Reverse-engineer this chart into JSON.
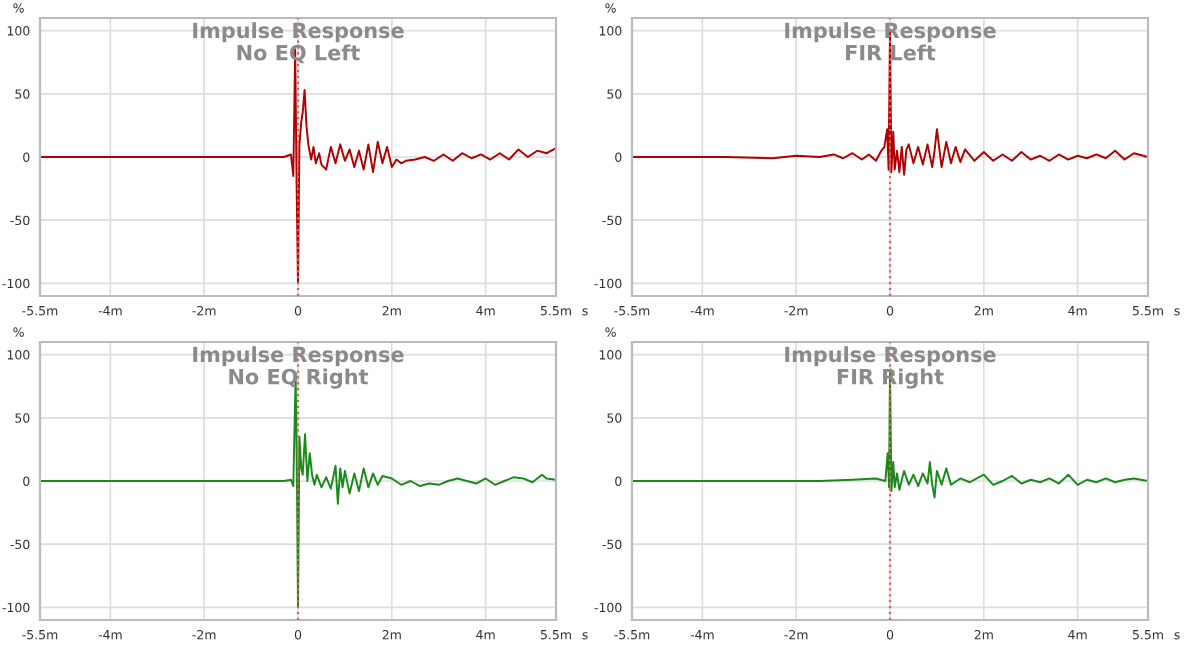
{
  "chart_data": [
    {
      "type": "line",
      "title": "Impulse Response",
      "subtitle": "No EQ Left",
      "ylabel": "%",
      "xlabel": "s",
      "xlim": [
        -5.5,
        5.5
      ],
      "xticks": [
        {
          "value": -5.5,
          "label": "-5.5m"
        },
        {
          "value": -4,
          "label": "-4m"
        },
        {
          "value": -2,
          "label": "-2m"
        },
        0,
        {
          "value": 2,
          "label": "2m"
        },
        {
          "value": 4,
          "label": "4m"
        },
        {
          "value": 5.5,
          "label": "5.5m"
        }
      ],
      "ylim": [
        -110,
        110
      ],
      "yticks": [
        -100,
        -50,
        0,
        50,
        100
      ],
      "grid": true,
      "ref_lines": [
        {
          "axis": "x",
          "value": 0,
          "color": "#e06060",
          "line_style": "dotted"
        }
      ],
      "series": [
        {
          "color": "#b00000",
          "x": [
            -5.5,
            -0.3,
            -0.15,
            -0.1,
            -0.06,
            -0.03,
            0,
            0.03,
            0.07,
            0.1,
            0.14,
            0.18,
            0.22,
            0.28,
            0.33,
            0.38,
            0.45,
            0.5,
            0.6,
            0.7,
            0.8,
            0.9,
            1.0,
            1.1,
            1.2,
            1.3,
            1.4,
            1.5,
            1.6,
            1.7,
            1.8,
            1.9,
            2.0,
            2.1,
            2.2,
            2.3,
            2.5,
            2.7,
            2.9,
            3.1,
            3.3,
            3.5,
            3.7,
            3.9,
            4.1,
            4.3,
            4.5,
            4.7,
            4.9,
            5.1,
            5.3,
            5.5
          ],
          "values": [
            0,
            0,
            2,
            -15,
            85,
            -20,
            -100,
            10,
            28,
            35,
            53,
            25,
            10,
            -2,
            8,
            -5,
            3,
            -6,
            -10,
            8,
            -5,
            10,
            -3,
            6,
            -8,
            5,
            -10,
            10,
            -12,
            12,
            -5,
            8,
            -8,
            -2,
            -5,
            -3,
            -2,
            0,
            -3,
            2,
            -3,
            3,
            -1,
            2,
            -2,
            3,
            -2,
            6,
            0,
            5,
            3,
            7
          ]
        }
      ]
    },
    {
      "type": "line",
      "title": "Impulse Response",
      "subtitle": "FIR Left",
      "ylabel": "%",
      "xlabel": "s",
      "xlim": [
        -5.5,
        5.5
      ],
      "xticks": [
        {
          "value": -5.5,
          "label": "-5.5m"
        },
        {
          "value": -4,
          "label": "-4m"
        },
        {
          "value": -2,
          "label": "-2m"
        },
        0,
        {
          "value": 2,
          "label": "2m"
        },
        {
          "value": 4,
          "label": "4m"
        },
        {
          "value": 5.5,
          "label": "5.5m"
        }
      ],
      "ylim": [
        -110,
        110
      ],
      "yticks": [
        -100,
        -50,
        0,
        50,
        100
      ],
      "grid": true,
      "ref_lines": [
        {
          "axis": "x",
          "value": 0,
          "color": "#e06060",
          "line_style": "dotted"
        }
      ],
      "series": [
        {
          "color": "#b00000",
          "x": [
            -5.5,
            -3.5,
            -2.5,
            -2,
            -1.5,
            -1.2,
            -1.0,
            -0.8,
            -0.6,
            -0.45,
            -0.3,
            -0.2,
            -0.12,
            -0.06,
            -0.03,
            0,
            0.03,
            0.07,
            0.1,
            0.15,
            0.2,
            0.25,
            0.3,
            0.35,
            0.4,
            0.5,
            0.6,
            0.7,
            0.8,
            0.9,
            0.95,
            1.0,
            1.1,
            1.2,
            1.3,
            1.4,
            1.5,
            1.6,
            1.8,
            2.0,
            2.2,
            2.4,
            2.6,
            2.8,
            3.0,
            3.2,
            3.4,
            3.6,
            3.8,
            4.0,
            4.2,
            4.4,
            4.6,
            4.8,
            5.0,
            5.2,
            5.5
          ],
          "values": [
            0,
            0,
            -1,
            1,
            0,
            2,
            -1,
            3,
            -2,
            2,
            -3,
            4,
            8,
            22,
            -10,
            100,
            -12,
            20,
            -10,
            5,
            -12,
            8,
            -14,
            6,
            10,
            -5,
            8,
            -6,
            10,
            -8,
            5,
            22,
            -8,
            12,
            -5,
            8,
            -4,
            6,
            -3,
            4,
            -3,
            2,
            -3,
            4,
            -2,
            1,
            -3,
            2,
            -2,
            1,
            -1,
            2,
            -1,
            5,
            -2,
            3,
            0
          ]
        }
      ]
    },
    {
      "type": "line",
      "title": "Impulse Response",
      "subtitle": "No EQ Right",
      "ylabel": "%",
      "xlabel": "s",
      "xlim": [
        -5.5,
        5.5
      ],
      "xticks": [
        {
          "value": -5.5,
          "label": "-5.5m"
        },
        {
          "value": -4,
          "label": "-4m"
        },
        {
          "value": -2,
          "label": "-2m"
        },
        0,
        {
          "value": 2,
          "label": "2m"
        },
        {
          "value": 4,
          "label": "4m"
        },
        {
          "value": 5.5,
          "label": "5.5m"
        }
      ],
      "ylim": [
        -110,
        110
      ],
      "yticks": [
        -100,
        -50,
        0,
        50,
        100
      ],
      "grid": true,
      "ref_lines": [
        {
          "axis": "x",
          "value": 0,
          "color": "#e06060",
          "line_style": "dotted"
        }
      ],
      "series": [
        {
          "color": "#1a8a1a",
          "x": [
            -5.5,
            -0.3,
            -0.15,
            -0.1,
            -0.05,
            -0.02,
            0,
            0.03,
            0.07,
            0.1,
            0.15,
            0.2,
            0.25,
            0.3,
            0.35,
            0.4,
            0.5,
            0.6,
            0.7,
            0.8,
            0.85,
            0.9,
            0.95,
            1.0,
            1.1,
            1.2,
            1.3,
            1.4,
            1.5,
            1.6,
            1.7,
            1.8,
            2.0,
            2.2,
            2.4,
            2.6,
            2.8,
            3.0,
            3.2,
            3.4,
            3.6,
            3.8,
            4.0,
            4.2,
            4.4,
            4.6,
            4.8,
            5.0,
            5.2,
            5.3,
            5.5
          ],
          "values": [
            0,
            0,
            1,
            -4,
            85,
            -10,
            -100,
            35,
            10,
            5,
            37,
            0,
            22,
            5,
            -3,
            5,
            -5,
            3,
            -6,
            12,
            -18,
            10,
            -5,
            8,
            -10,
            6,
            -8,
            10,
            -5,
            6,
            -3,
            4,
            2,
            -3,
            0,
            -4,
            -2,
            -3,
            0,
            2,
            0,
            -2,
            2,
            -3,
            0,
            3,
            2,
            -1,
            5,
            2,
            1
          ]
        }
      ]
    },
    {
      "type": "line",
      "title": "Impulse Response",
      "subtitle": "FIR Right",
      "ylabel": "%",
      "xlabel": "s",
      "xlim": [
        -5.5,
        5.5
      ],
      "xticks": [
        {
          "value": -5.5,
          "label": "-5.5m"
        },
        {
          "value": -4,
          "label": "-4m"
        },
        {
          "value": -2,
          "label": "-2m"
        },
        0,
        {
          "value": 2,
          "label": "2m"
        },
        {
          "value": 4,
          "label": "4m"
        },
        {
          "value": 5.5,
          "label": "5.5m"
        }
      ],
      "ylim": [
        -110,
        110
      ],
      "yticks": [
        -100,
        -50,
        0,
        50,
        100
      ],
      "grid": true,
      "ref_lines": [
        {
          "axis": "x",
          "value": 0,
          "color": "#e06060",
          "line_style": "dotted"
        }
      ],
      "series": [
        {
          "color": "#1a8a1a",
          "x": [
            -5.5,
            -3,
            -1.5,
            -0.8,
            -0.3,
            -0.1,
            -0.05,
            -0.02,
            0,
            0.03,
            0.07,
            0.1,
            0.15,
            0.2,
            0.3,
            0.4,
            0.5,
            0.6,
            0.7,
            0.8,
            0.85,
            0.9,
            0.95,
            1.0,
            1.1,
            1.2,
            1.3,
            1.5,
            1.7,
            1.9,
            2.0,
            2.2,
            2.4,
            2.6,
            2.8,
            3.0,
            3.2,
            3.4,
            3.6,
            3.8,
            4.0,
            4.2,
            4.4,
            4.6,
            4.8,
            5.0,
            5.2,
            5.5
          ],
          "values": [
            0,
            0,
            0,
            1,
            2,
            0,
            22,
            -5,
            88,
            -8,
            15,
            -5,
            6,
            -7,
            8,
            -3,
            5,
            -4,
            6,
            -2,
            15,
            -3,
            -13,
            8,
            -3,
            10,
            -3,
            2,
            -1,
            3,
            5,
            -3,
            0,
            4,
            -2,
            1,
            -1,
            2,
            -2,
            5,
            -3,
            1,
            -1,
            2,
            -1,
            1,
            2,
            0
          ]
        }
      ]
    }
  ]
}
